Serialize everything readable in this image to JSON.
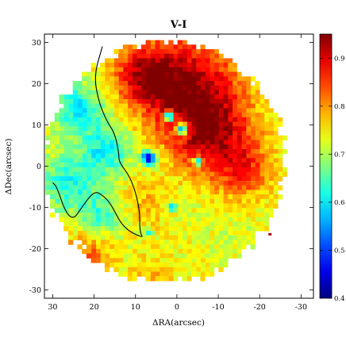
{
  "chart_data": {
    "type": "heatmap",
    "title": "V-I",
    "xlabel": "ΔRA(arcsec)",
    "ylabel": "ΔDec(arcsec)",
    "xlim": [
      32,
      -33
    ],
    "ylim": [
      -32,
      32
    ],
    "x_ticks": [
      30,
      20,
      10,
      0,
      -10,
      -20,
      -30
    ],
    "y_ticks": [
      30,
      20,
      10,
      0,
      -10,
      -20,
      -30
    ],
    "colorbar": {
      "range": [
        0.4,
        0.95
      ],
      "ticks": [
        0.4,
        0.5,
        0.6,
        0.7,
        0.8,
        0.9
      ],
      "colormap": "jet"
    },
    "map": {
      "center": [
        3,
        1
      ],
      "radius": 29,
      "blobs": [
        {
          "x": -2,
          "y": 20,
          "r": 12,
          "value": 0.92
        },
        {
          "x": -8,
          "y": 8,
          "r": 10,
          "value": 0.9
        },
        {
          "x": 8,
          "y": 22,
          "r": 7,
          "value": 0.87
        },
        {
          "x": -16,
          "y": -1,
          "r": 7,
          "value": 0.84
        },
        {
          "x": 8,
          "y": -9,
          "r": 6,
          "value": 0.78
        },
        {
          "x": 22,
          "y": -22,
          "r": 6,
          "value": 0.83
        },
        {
          "x": 6,
          "y": -27,
          "r": 5,
          "value": 0.78
        },
        {
          "x": 24,
          "y": 14,
          "r": 6,
          "value": 0.6
        },
        {
          "x": 26,
          "y": -4,
          "r": 7,
          "value": 0.62
        },
        {
          "x": 17,
          "y": 4,
          "r": 6,
          "value": 0.61
        },
        {
          "x": 18,
          "y": -12,
          "r": 5,
          "value": 0.64
        },
        {
          "x": -3,
          "y": -8,
          "r": 5,
          "value": 0.72
        },
        {
          "x": -14,
          "y": -17,
          "r": 6,
          "value": 0.72
        },
        {
          "x": -1,
          "y": -17,
          "r": 5,
          "value": 0.74
        },
        {
          "x": 5,
          "y": 1,
          "r": 4,
          "value": 0.71
        }
      ],
      "spots": [
        {
          "x": 7,
          "y": 2,
          "r": 1.5,
          "value": 0.42
        },
        {
          "x": 2,
          "y": 12,
          "r": 1.2,
          "value": 0.52
        },
        {
          "x": -1,
          "y": 9,
          "r": 1.6,
          "value": 0.58
        },
        {
          "x": -5,
          "y": 1,
          "r": 1.0,
          "value": 0.56
        },
        {
          "x": 1,
          "y": -10,
          "r": 1.0,
          "value": 0.55
        },
        {
          "x": 7,
          "y": -16,
          "r": 1.0,
          "value": 0.6
        },
        {
          "x": -22.5,
          "y": -16.5,
          "r": 0.7,
          "value": 0.93
        }
      ],
      "boundary_curve": [
        [
          18,
          29
        ],
        [
          20,
          22
        ],
        [
          19,
          16
        ],
        [
          17,
          11
        ],
        [
          15,
          8
        ],
        [
          14,
          3
        ],
        [
          14,
          1
        ],
        [
          11,
          -3
        ],
        [
          9,
          -10
        ],
        [
          9,
          -16
        ],
        [
          8,
          -17.5
        ],
        [
          13,
          -15
        ],
        [
          16,
          -9
        ],
        [
          18,
          -7
        ],
        [
          20,
          -6
        ],
        [
          23,
          -10
        ],
        [
          25,
          -13
        ],
        [
          27,
          -11
        ],
        [
          29,
          -5
        ],
        [
          30,
          -4
        ]
      ]
    }
  }
}
